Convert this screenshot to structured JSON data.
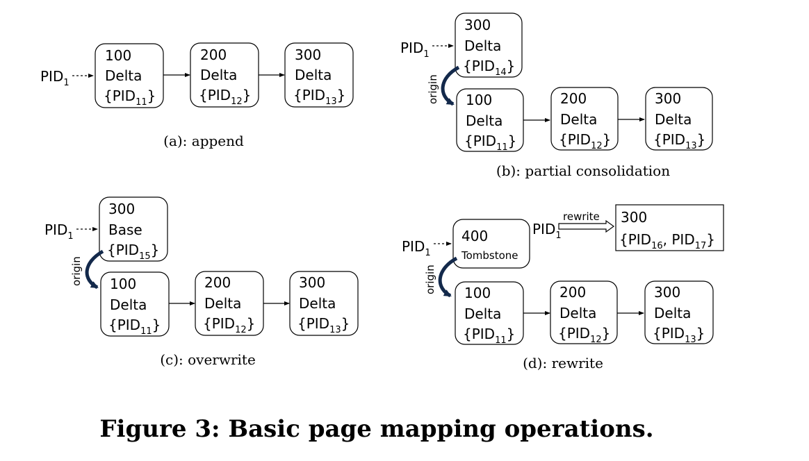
{
  "figure_caption": "Figure 3: Basic page mapping operations.",
  "panels": {
    "a": {
      "caption": "(a): append",
      "pid": "PID",
      "pid_sub": "1",
      "nodes": [
        {
          "value": "100",
          "kind": "Delta",
          "ref_open": "{PID",
          "ref_sub": "11",
          "ref_close": "}"
        },
        {
          "value": "200",
          "kind": "Delta",
          "ref_open": "{PID",
          "ref_sub": "12",
          "ref_close": "}"
        },
        {
          "value": "300",
          "kind": "Delta",
          "ref_open": "{PID",
          "ref_sub": "13",
          "ref_close": "}"
        }
      ]
    },
    "b": {
      "caption": "(b): partial consolidation",
      "pid": "PID",
      "pid_sub": "1",
      "origin_label": "origin",
      "top_node": {
        "value": "300",
        "kind": "Delta",
        "ref_open": "{PID",
        "ref_sub": "14",
        "ref_close": "}"
      },
      "nodes": [
        {
          "value": "100",
          "kind": "Delta",
          "ref_open": "{PID",
          "ref_sub": "11",
          "ref_close": "}"
        },
        {
          "value": "200",
          "kind": "Delta",
          "ref_open": "{PID",
          "ref_sub": "12",
          "ref_close": "}"
        },
        {
          "value": "300",
          "kind": "Delta",
          "ref_open": "{PID",
          "ref_sub": "13",
          "ref_close": "}"
        }
      ]
    },
    "c": {
      "caption": "(c): overwrite",
      "pid": "PID",
      "pid_sub": "1",
      "origin_label": "origin",
      "top_node": {
        "value": "300",
        "kind": "Base",
        "ref_open": "{PID",
        "ref_sub": "15",
        "ref_close": "}"
      },
      "nodes": [
        {
          "value": "100",
          "kind": "Delta",
          "ref_open": "{PID",
          "ref_sub": "11",
          "ref_close": "}"
        },
        {
          "value": "200",
          "kind": "Delta",
          "ref_open": "{PID",
          "ref_sub": "12",
          "ref_close": "}"
        },
        {
          "value": "300",
          "kind": "Delta",
          "ref_open": "{PID",
          "ref_sub": "13",
          "ref_close": "}"
        }
      ]
    },
    "d": {
      "caption": "(d): rewrite",
      "pid": "PID",
      "pid_sub": "1",
      "origin_label": "origin",
      "top_node": {
        "value": "400",
        "kind": "Tombstone"
      },
      "rewrite_label": "rewrite",
      "rewrite_pid": "PID",
      "rewrite_pid_sub": "1",
      "rewrite_target": {
        "value": "300",
        "ref_open": "{PID",
        "ref_sub_a": "16",
        "ref_mid": ", PID",
        "ref_sub_b": "17",
        "ref_close": "}"
      },
      "nodes": [
        {
          "value": "100",
          "kind": "Delta",
          "ref_open": "{PID",
          "ref_sub": "11",
          "ref_close": "}"
        },
        {
          "value": "200",
          "kind": "Delta",
          "ref_open": "{PID",
          "ref_sub": "12",
          "ref_close": "}"
        },
        {
          "value": "300",
          "kind": "Delta",
          "ref_open": "{PID",
          "ref_sub": "13",
          "ref_close": "}"
        }
      ]
    }
  }
}
